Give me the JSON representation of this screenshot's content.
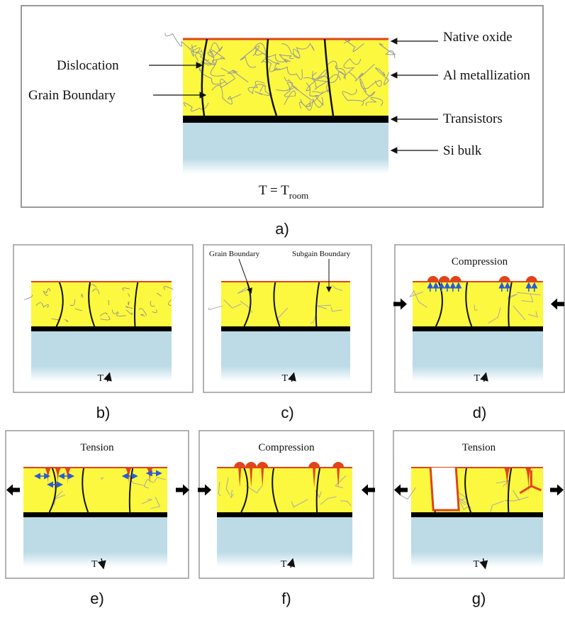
{
  "panel_a": {
    "native_oxide": "Native oxide",
    "dislocation": "Dislocation",
    "al_metallization": "Al metallization",
    "grain_boundary": "Grain Boundary",
    "transistors": "Transistors",
    "si_bulk": "Si bulk",
    "temperature": "T = T",
    "temperature_subscript": "room",
    "caption": "a)"
  },
  "panels": [
    {
      "caption": "b)",
      "temperature": "T"
    },
    {
      "caption": "c)",
      "grain_boundary": "Grain Boundary",
      "subgrain_boundary": "Subgain Boundary",
      "temperature": "T"
    },
    {
      "caption": "d)",
      "title": "Compression",
      "temperature": "T"
    },
    {
      "caption": "e)",
      "title": "Tension",
      "temperature": "T"
    },
    {
      "caption": "f)",
      "title": "Compression",
      "temperature": "T"
    },
    {
      "caption": "g)",
      "title": "Tension",
      "temperature": "T"
    }
  ]
}
